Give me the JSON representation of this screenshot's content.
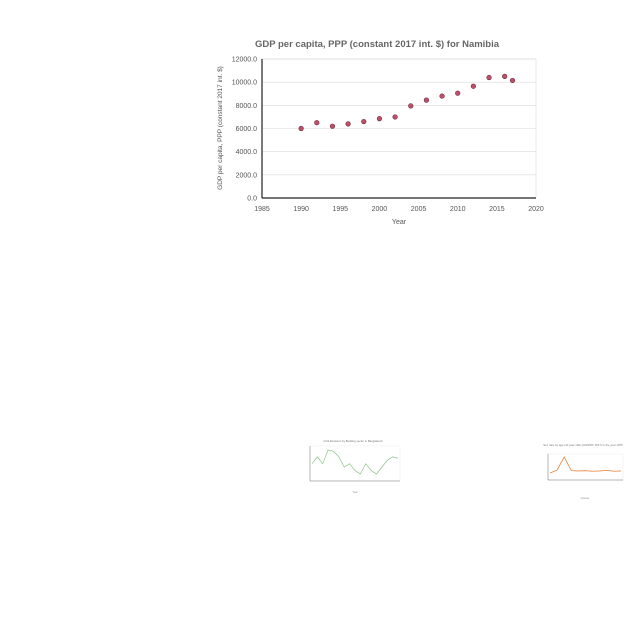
{
  "chart_data": [
    {
      "type": "scatter",
      "title": "GDP per capita, PPP (constant  2017 int. $) for Namibia",
      "xlabel": "Year",
      "ylabel": "GDP per capita, PPP (constant 2017 int. $)",
      "xlim": [
        1985,
        2020
      ],
      "ylim": [
        0,
        12000
      ],
      "x_ticks": [
        1985,
        1990,
        1995,
        2000,
        2005,
        2010,
        2015,
        2020
      ],
      "y_ticks": [
        "0.0",
        "2000.0",
        "4000.0",
        "6000.0",
        "8000.0",
        "10000.0",
        "12000.0"
      ],
      "grid": true,
      "marker_color": "#c0506a",
      "series": [
        {
          "x": [
            1990,
            1992,
            1994,
            1996,
            1998,
            2000,
            2002,
            2004,
            2006,
            2008,
            2010,
            2012,
            2014,
            2016,
            2017
          ],
          "values": [
            6000,
            6500,
            6200,
            6400,
            6600,
            6850,
            7000,
            7950,
            8450,
            8800,
            9050,
            9650,
            10400,
            10500,
            10150
          ]
        }
      ]
    },
    {
      "type": "line",
      "title": "CO2 Emission by Building sector in Bangladesh",
      "xlabel": "Year",
      "ylabel": "",
      "line_color": "#8fc18a",
      "series": [
        {
          "values": [
            5,
            6,
            5,
            7,
            6.8,
            6,
            4.5,
            5,
            4,
            3.5,
            5,
            4,
            3.5,
            4.5,
            5.5,
            6,
            5.8
          ]
        }
      ]
    },
    {
      "type": "line",
      "title": "Sex ratio by age (10 year olds) (UNWPP, 2017) in the year 1975",
      "xlabel": "Country",
      "ylabel": "",
      "line_color": "#e8843c",
      "series": [
        {
          "values": [
            0.9,
            1.0,
            1.45,
            0.98,
            0.97,
            0.98,
            0.96,
            0.97,
            0.99,
            0.96,
            0.97
          ]
        }
      ]
    }
  ]
}
